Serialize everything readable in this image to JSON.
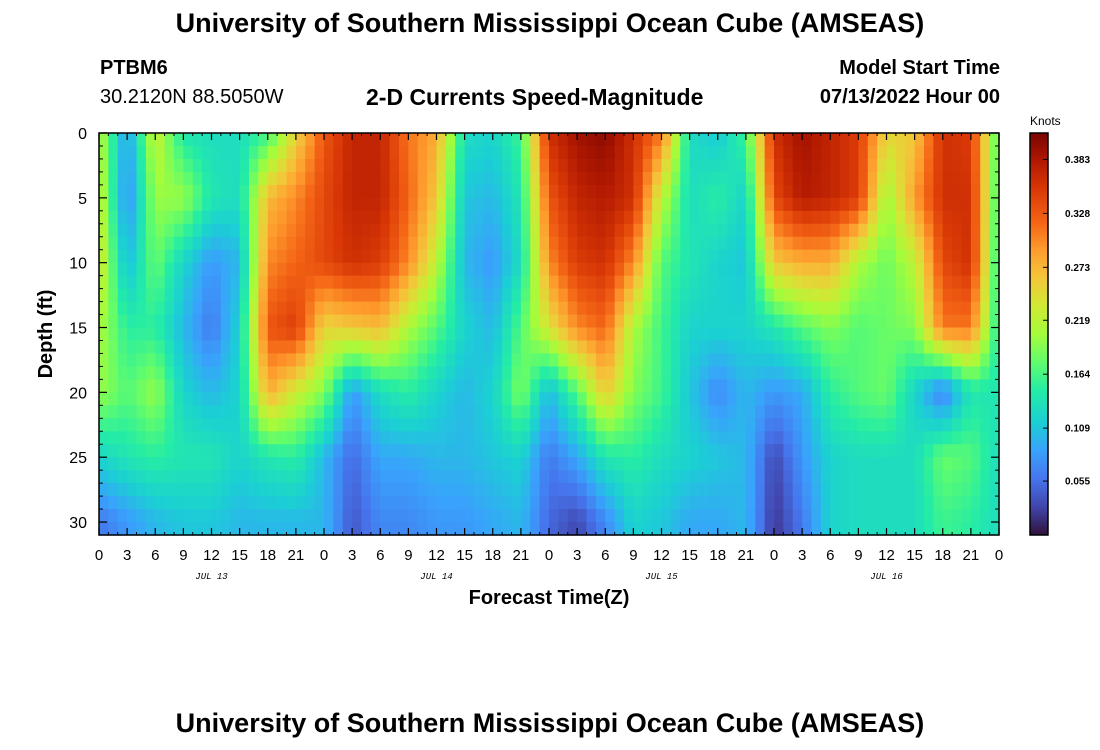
{
  "header": {
    "title": "University of Southern Mississippi Ocean Cube (AMSEAS)",
    "station_id": "PTBM6",
    "coords": "30.2120N  88.5050W",
    "chart_title": "2-D Currents Speed-Magnitude",
    "start_label": "Model Start Time",
    "start_value": "07/13/2022 Hour 00"
  },
  "footer": {
    "title": "University of Southern Mississippi Ocean Cube (AMSEAS)"
  },
  "chart_data": {
    "type": "heatmap",
    "title": "2-D Currents Speed-Magnitude",
    "xlabel": "Forecast Time(Z)",
    "ylabel": "Depth (ft)",
    "x_ticks": [
      "0",
      "3",
      "6",
      "9",
      "12",
      "15",
      "18",
      "21",
      "0",
      "3",
      "6",
      "9",
      "12",
      "15",
      "18",
      "21",
      "0",
      "3",
      "6",
      "9",
      "12",
      "15",
      "18",
      "21",
      "0",
      "3",
      "6",
      "9",
      "12",
      "15",
      "18",
      "21",
      "0"
    ],
    "date_labels": [
      "JUL 13",
      "JUL 14",
      "JUL 15",
      "JUL 16"
    ],
    "y_ticks": [
      "0",
      "5",
      "10",
      "15",
      "20",
      "25",
      "30"
    ],
    "xlim": [
      0,
      96
    ],
    "ylim": [
      0,
      31
    ],
    "colorbar": {
      "label": "Knots",
      "ticks": [
        "0.383",
        "0.328",
        "0.273",
        "0.219",
        "0.164",
        "0.109",
        "0.055"
      ],
      "range": [
        0.0,
        0.41
      ]
    },
    "hours": [
      0,
      3,
      6,
      9,
      12,
      15,
      18,
      21,
      24,
      27,
      30,
      33,
      36,
      39,
      42,
      45,
      48,
      51,
      54,
      57,
      60,
      63,
      66,
      69,
      72,
      75,
      78,
      81,
      84,
      87,
      90,
      93,
      96
    ],
    "depths": [
      0,
      5,
      10,
      15,
      20,
      25,
      30
    ],
    "speed_knots": [
      [
        0.22,
        0.08,
        0.23,
        0.14,
        0.13,
        0.13,
        0.16,
        0.25,
        0.33,
        0.37,
        0.37,
        0.31,
        0.28,
        0.13,
        0.12,
        0.16,
        0.36,
        0.39,
        0.4,
        0.36,
        0.31,
        0.13,
        0.11,
        0.16,
        0.36,
        0.39,
        0.37,
        0.35,
        0.25,
        0.26,
        0.36,
        0.35,
        0.16
      ],
      [
        0.23,
        0.07,
        0.2,
        0.2,
        0.14,
        0.13,
        0.27,
        0.3,
        0.34,
        0.37,
        0.37,
        0.32,
        0.26,
        0.11,
        0.1,
        0.14,
        0.33,
        0.37,
        0.38,
        0.36,
        0.22,
        0.13,
        0.15,
        0.12,
        0.34,
        0.38,
        0.37,
        0.35,
        0.2,
        0.29,
        0.36,
        0.36,
        0.15
      ],
      [
        0.24,
        0.1,
        0.18,
        0.12,
        0.08,
        0.1,
        0.3,
        0.32,
        0.34,
        0.36,
        0.35,
        0.3,
        0.22,
        0.1,
        0.08,
        0.13,
        0.3,
        0.35,
        0.36,
        0.3,
        0.17,
        0.14,
        0.12,
        0.11,
        0.26,
        0.28,
        0.28,
        0.21,
        0.18,
        0.22,
        0.34,
        0.36,
        0.14
      ],
      [
        0.21,
        0.15,
        0.15,
        0.1,
        0.06,
        0.12,
        0.33,
        0.35,
        0.25,
        0.26,
        0.27,
        0.21,
        0.17,
        0.12,
        0.1,
        0.17,
        0.24,
        0.3,
        0.32,
        0.21,
        0.16,
        0.12,
        0.12,
        0.12,
        0.14,
        0.17,
        0.19,
        0.17,
        0.18,
        0.19,
        0.31,
        0.31,
        0.14
      ],
      [
        0.2,
        0.17,
        0.2,
        0.12,
        0.1,
        0.12,
        0.28,
        0.23,
        0.19,
        0.08,
        0.13,
        0.15,
        0.12,
        0.1,
        0.12,
        0.19,
        0.1,
        0.17,
        0.26,
        0.19,
        0.16,
        0.11,
        0.07,
        0.1,
        0.08,
        0.09,
        0.15,
        0.17,
        0.18,
        0.12,
        0.06,
        0.14,
        0.14
      ],
      [
        0.12,
        0.14,
        0.15,
        0.14,
        0.14,
        0.12,
        0.14,
        0.15,
        0.1,
        0.05,
        0.09,
        0.09,
        0.1,
        0.1,
        0.11,
        0.12,
        0.06,
        0.09,
        0.14,
        0.15,
        0.13,
        0.12,
        0.11,
        0.1,
        0.03,
        0.08,
        0.12,
        0.13,
        0.13,
        0.13,
        0.18,
        0.17,
        0.13
      ],
      [
        0.06,
        0.08,
        0.1,
        0.11,
        0.11,
        0.1,
        0.1,
        0.1,
        0.1,
        0.04,
        0.07,
        0.07,
        0.08,
        0.08,
        0.09,
        0.1,
        0.05,
        0.03,
        0.07,
        0.12,
        0.11,
        0.09,
        0.09,
        0.1,
        0.02,
        0.06,
        0.12,
        0.13,
        0.13,
        0.13,
        0.16,
        0.15,
        0.13
      ]
    ]
  }
}
